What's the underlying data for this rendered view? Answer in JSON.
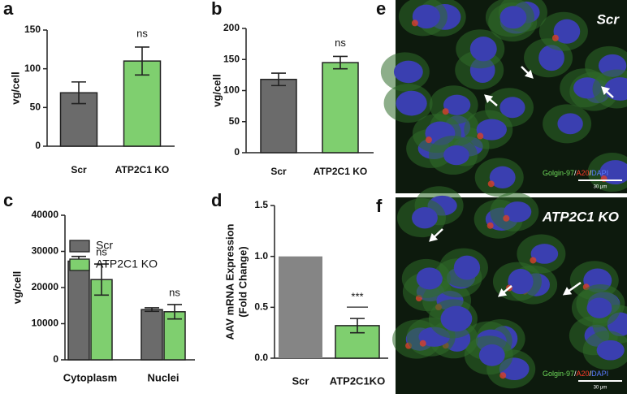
{
  "chart_data": [
    {
      "type": "bar",
      "panel": "a",
      "ylabel": "vg/cell",
      "categories": [
        "Scr",
        "ATP2C1 KO"
      ],
      "values": [
        69,
        110
      ],
      "errors": [
        14,
        18
      ],
      "colors": [
        "#6b6b6b",
        "#7fcf6f"
      ],
      "annotations": [
        null,
        "ns"
      ],
      "ylim": [
        0,
        150
      ],
      "yticks": [
        0,
        50,
        100,
        150
      ]
    },
    {
      "type": "bar",
      "panel": "b",
      "ylabel": "vg/cell",
      "categories": [
        "Scr",
        "ATP2C1 KO"
      ],
      "values": [
        118,
        145
      ],
      "errors": [
        10,
        10
      ],
      "colors": [
        "#6b6b6b",
        "#7fcf6f"
      ],
      "annotations": [
        null,
        "ns"
      ],
      "ylim": [
        0,
        200
      ],
      "yticks": [
        0,
        50,
        100,
        150,
        200
      ]
    },
    {
      "type": "grouped-bar",
      "panel": "c",
      "ylabel": "vg/cell",
      "categories": [
        "Cytoplasm",
        "Nuclei"
      ],
      "series": [
        {
          "name": "Scr",
          "color": "#6b6b6b",
          "values": [
            27300,
            13900
          ],
          "errors": [
            1300,
            500
          ]
        },
        {
          "name": "ATP2C1 KO",
          "color": "#7fcf6f",
          "values": [
            22200,
            13300
          ],
          "errors": [
            4300,
            2000
          ],
          "annotations": [
            "ns",
            "ns"
          ]
        }
      ],
      "ylim": [
        0,
        40000
      ],
      "yticks": [
        0,
        10000,
        20000,
        30000,
        40000
      ],
      "legend": "top-left"
    },
    {
      "type": "bar",
      "panel": "d",
      "ylabel": [
        "AAV mRNA Expression",
        "(Fold Change)"
      ],
      "categories": [
        "Scr",
        "ATP2C1KO"
      ],
      "values": [
        1.0,
        0.32
      ],
      "errors": [
        null,
        0.07
      ],
      "colors": [
        "#858585",
        "#7fcf6f"
      ],
      "annotations": [
        null,
        "***"
      ],
      "ylim": [
        0,
        1.5
      ],
      "yticks": [
        {
          "value": 0,
          "label": "0.0"
        },
        {
          "value": 0.5,
          "label": "0.5"
        },
        {
          "value": 1.0,
          "label": "1.0"
        },
        {
          "value": 1.5,
          "label": "1.5"
        }
      ]
    }
  ],
  "micrographs": [
    {
      "panel": "e",
      "label": "Scr",
      "stain": [
        "Golgin-97",
        "/",
        "A20",
        "/",
        "DAPI"
      ],
      "scale": "30 μm"
    },
    {
      "panel": "f",
      "label": "ATP2C1 KO",
      "stain": [
        "Golgin-97",
        "/",
        "A20",
        "/",
        "DAPI"
      ],
      "scale": "30 μm"
    }
  ]
}
